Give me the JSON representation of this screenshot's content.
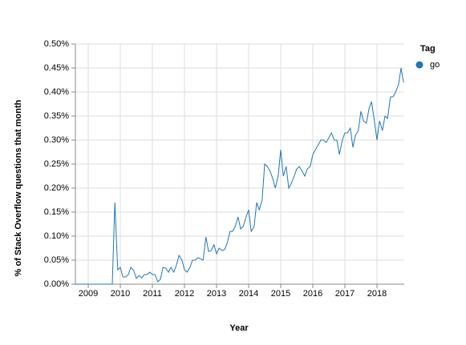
{
  "chart_data": {
    "type": "line",
    "x_label": "Year",
    "y_label": "% of Stack Overflow questions that month",
    "legend_title": "Tag",
    "grid": true,
    "xlim": [
      2008.6,
      2018.85
    ],
    "xticks": [
      2009,
      2010,
      2011,
      2012,
      2013,
      2014,
      2015,
      2016,
      2017,
      2018
    ],
    "ylim": [
      0,
      0.5
    ],
    "yticks": [
      {
        "value": 0,
        "label": "0.00%"
      },
      {
        "value": 0.05,
        "label": "0.05%"
      },
      {
        "value": 0.1,
        "label": "0.10%"
      },
      {
        "value": 0.15,
        "label": "0.15%"
      },
      {
        "value": 0.2,
        "label": "0.20%"
      },
      {
        "value": 0.25,
        "label": "0.25%"
      },
      {
        "value": 0.3,
        "label": "0.30%"
      },
      {
        "value": 0.35,
        "label": "0.35%"
      },
      {
        "value": 0.4,
        "label": "0.40%"
      },
      {
        "value": 0.45,
        "label": "0.45%"
      },
      {
        "value": 0.5,
        "label": "0.50%"
      }
    ],
    "x": [
      2008.6,
      2009.75,
      2009.83,
      2009.92,
      2010.0,
      2010.08,
      2010.17,
      2010.25,
      2010.33,
      2010.42,
      2010.5,
      2010.58,
      2010.67,
      2010.75,
      2010.83,
      2010.92,
      2011.0,
      2011.08,
      2011.17,
      2011.25,
      2011.33,
      2011.42,
      2011.5,
      2011.58,
      2011.67,
      2011.75,
      2011.83,
      2011.92,
      2012.0,
      2012.08,
      2012.17,
      2012.25,
      2012.33,
      2012.42,
      2012.5,
      2012.58,
      2012.67,
      2012.75,
      2012.83,
      2012.92,
      2013.0,
      2013.08,
      2013.17,
      2013.25,
      2013.33,
      2013.42,
      2013.5,
      2013.58,
      2013.67,
      2013.75,
      2013.83,
      2013.92,
      2014.0,
      2014.08,
      2014.17,
      2014.25,
      2014.33,
      2014.42,
      2014.5,
      2014.58,
      2014.67,
      2014.75,
      2014.83,
      2014.92,
      2015.0,
      2015.08,
      2015.17,
      2015.25,
      2015.33,
      2015.42,
      2015.5,
      2015.58,
      2015.67,
      2015.75,
      2015.83,
      2015.92,
      2016.0,
      2016.08,
      2016.17,
      2016.25,
      2016.33,
      2016.42,
      2016.5,
      2016.58,
      2016.67,
      2016.75,
      2016.83,
      2016.92,
      2017.0,
      2017.08,
      2017.17,
      2017.25,
      2017.33,
      2017.42,
      2017.5,
      2017.58,
      2017.67,
      2017.75,
      2017.83,
      2017.92,
      2018.0,
      2018.08,
      2018.17,
      2018.25,
      2018.33,
      2018.42,
      2018.5,
      2018.58,
      2018.67,
      2018.75,
      2018.83
    ],
    "series": [
      {
        "name": "go",
        "color": "#1f77b4",
        "values": [
          0,
          0,
          0.17,
          0.03,
          0.035,
          0.015,
          0.015,
          0.02,
          0.035,
          0.028,
          0.012,
          0.018,
          0.013,
          0.02,
          0.02,
          0.025,
          0.02,
          0.02,
          0.005,
          0.01,
          0.035,
          0.033,
          0.025,
          0.035,
          0.025,
          0.04,
          0.06,
          0.05,
          0.03,
          0.025,
          0.035,
          0.05,
          0.05,
          0.055,
          0.053,
          0.05,
          0.098,
          0.068,
          0.07,
          0.082,
          0.063,
          0.075,
          0.07,
          0.072,
          0.085,
          0.11,
          0.11,
          0.12,
          0.14,
          0.115,
          0.12,
          0.14,
          0.155,
          0.11,
          0.12,
          0.17,
          0.155,
          0.175,
          0.25,
          0.245,
          0.235,
          0.22,
          0.2,
          0.225,
          0.28,
          0.225,
          0.245,
          0.2,
          0.21,
          0.225,
          0.24,
          0.245,
          0.235,
          0.225,
          0.24,
          0.245,
          0.27,
          0.28,
          0.29,
          0.3,
          0.3,
          0.295,
          0.305,
          0.315,
          0.3,
          0.3,
          0.27,
          0.3,
          0.315,
          0.315,
          0.325,
          0.285,
          0.31,
          0.32,
          0.36,
          0.34,
          0.335,
          0.365,
          0.38,
          0.34,
          0.3,
          0.34,
          0.32,
          0.35,
          0.345,
          0.39,
          0.39,
          0.4,
          0.415,
          0.45,
          0.42
        ]
      }
    ]
  }
}
